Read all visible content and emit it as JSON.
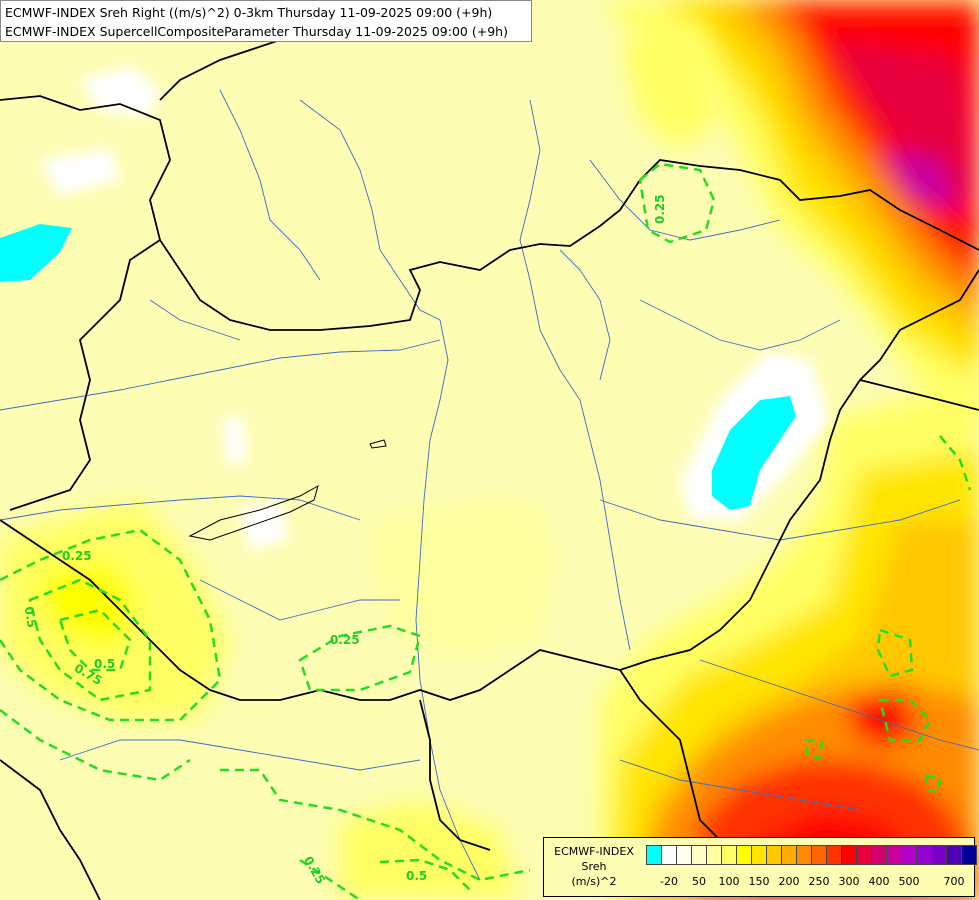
{
  "titles": {
    "line1": "ECMWF-INDEX Sreh Right ((m/s)^2) 0-3km Thursday 11-09-2025 09:00 (+9h)",
    "line2": "ECMWF-INDEX SupercellCompositeParameter Thursday 11-09-2025 09:00 (+9h)"
  },
  "legend": {
    "name": "ECMWF-INDEX",
    "variable": "Sreh",
    "unit": "(m/s)^2",
    "colors": [
      "#00ffff",
      "#ffffff",
      "#fffff0",
      "#ffffc8",
      "#ffffa0",
      "#ffff64",
      "#ffff00",
      "#ffe600",
      "#ffc800",
      "#ffaa00",
      "#ff8c00",
      "#ff6400",
      "#ff3200",
      "#ff0000",
      "#e6003c",
      "#d2006e",
      "#c800a0",
      "#b400c8",
      "#9600d2",
      "#7800c8",
      "#5000b4",
      "#000096"
    ],
    "ticks": [
      "-20",
      "50",
      "100",
      "150",
      "200",
      "250",
      "300",
      "400",
      "500",
      "700"
    ]
  },
  "contours": {
    "color": "#22dd22",
    "labels": [
      "0.25",
      "0.25",
      "0.25",
      "0.25",
      "0.5",
      "0.75",
      "0.5",
      "0.5"
    ]
  }
}
